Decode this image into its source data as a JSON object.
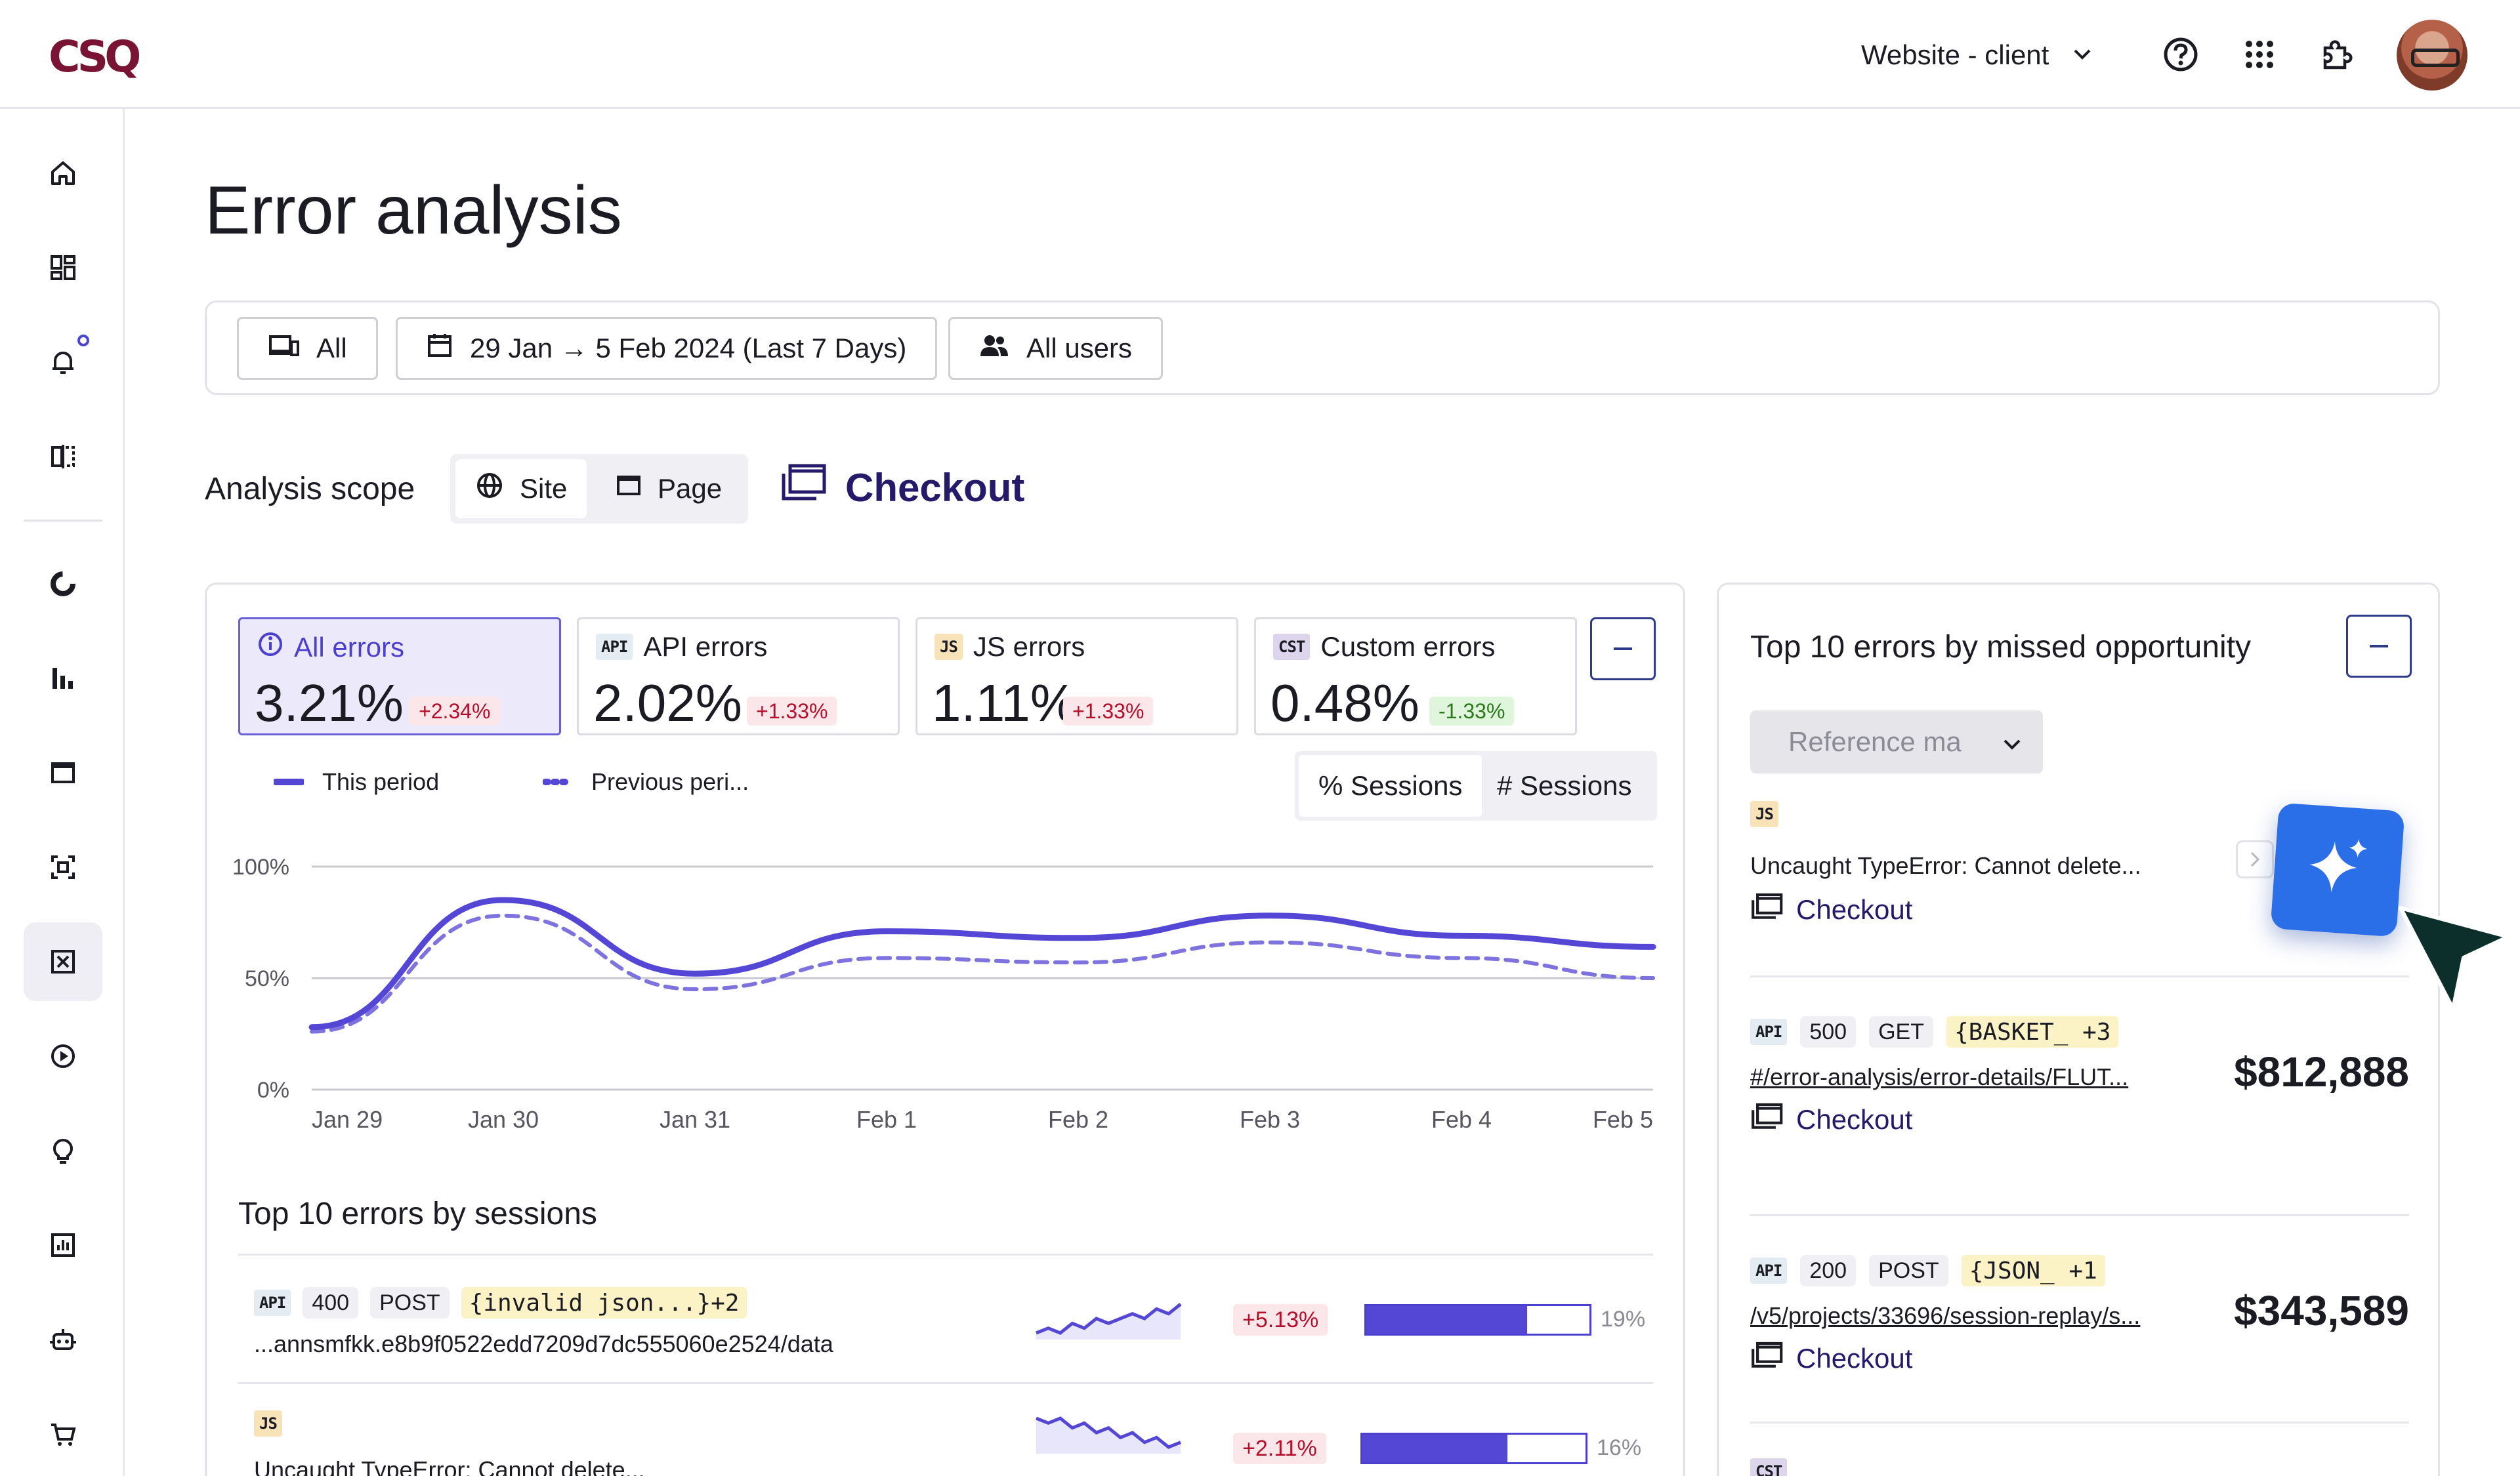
{
  "app": {
    "logo": "CSQ"
  },
  "topbar": {
    "site_selector": "Website - client",
    "icons": [
      "help-icon",
      "apps-grid-icon",
      "puzzle-icon"
    ]
  },
  "sidebar": {
    "icons": [
      "home-icon",
      "dashboard-icon",
      "bell-icon",
      "compare-icon",
      "donut-icon",
      "bar-chart-icon",
      "window-icon",
      "capture-icon",
      "error-analysis-icon",
      "play-icon",
      "lightbulb-icon",
      "report-icon",
      "bot-icon",
      "cart-icon"
    ],
    "active": "error-analysis-icon"
  },
  "page": {
    "title": "Error analysis"
  },
  "filters": {
    "device": "All",
    "date_range": "29 Jan → 5 Feb 2024 (Last 7 Days)",
    "segment": "All users"
  },
  "scope": {
    "label": "Analysis scope",
    "options": [
      "Site",
      "Page"
    ],
    "selected": "Site",
    "page_name": "Checkout"
  },
  "kpis": [
    {
      "badge": "",
      "label": "All errors",
      "value": "3.21%",
      "delta": "+2.34%",
      "trend": "up"
    },
    {
      "badge": "API",
      "label": "API errors",
      "value": "2.02%",
      "delta": "+1.33%",
      "trend": "up"
    },
    {
      "badge": "JS",
      "label": "JS errors",
      "value": "1.11%",
      "delta": "+1.33%",
      "trend": "up"
    },
    {
      "badge": "CST",
      "label": "Custom errors",
      "value": "0.48%",
      "delta": "-1.33%",
      "trend": "down"
    }
  ],
  "legend": {
    "this_period": "This period",
    "previous_period": "Previous peri..."
  },
  "metric_toggle": {
    "options": [
      "% Sessions",
      "# Sessions"
    ],
    "selected": "% Sessions"
  },
  "chart_data": {
    "type": "line",
    "x": [
      "Jan 29",
      "Jan 30",
      "Jan 31",
      "Feb 1",
      "Feb 2",
      "Feb 3",
      "Feb 4",
      "Feb 5"
    ],
    "ylim": [
      0,
      100
    ],
    "ytick_labels": [
      "100%",
      "50%",
      "0%"
    ],
    "grid": true,
    "series": [
      {
        "name": "This period",
        "style": "solid",
        "color": "#5547d6",
        "values": [
          28,
          85,
          52,
          71,
          68,
          78,
          69,
          64
        ]
      },
      {
        "name": "Previous peri...",
        "style": "dashed",
        "color": "#7d72de",
        "values": [
          26,
          78,
          45,
          59,
          57,
          66,
          59,
          50
        ]
      }
    ]
  },
  "sessions_table": {
    "title": "Top 10 errors by sessions",
    "rows": [
      {
        "badge": "API",
        "status": "400",
        "method": "POST",
        "code": "{invalid json...}+2",
        "desc": "...annsmfkk.e8b9f0522edd7209d7dc555060e2524/data",
        "spark": [
          2,
          3,
          2,
          4,
          3,
          5,
          4,
          5,
          6,
          5,
          7,
          6,
          8
        ],
        "delta": "+5.13%",
        "share": 0.72,
        "share_label": "19%"
      },
      {
        "badge": "JS",
        "status": "",
        "method": "",
        "code": "",
        "desc": "Uncaught TypeError: Cannot delete...",
        "spark": [
          8,
          7,
          8,
          6,
          7,
          5,
          6,
          4,
          5,
          3,
          4,
          2,
          3
        ],
        "delta": "+2.11%",
        "share": 0.65,
        "share_label": "16%"
      }
    ]
  },
  "opportunity": {
    "title": "Top 10 errors by missed opportunity",
    "reference_select": "Reference ma",
    "items": [
      {
        "badge": "JS",
        "tags": [],
        "desc": "Uncaught TypeError: Cannot delete...",
        "underline": false,
        "page": "Checkout",
        "value": ""
      },
      {
        "badge": "API",
        "tags": [
          "500",
          "GET"
        ],
        "code": "{BASKET_ +3",
        "desc": "#/error-analysis/error-details/FLUT...",
        "underline": true,
        "page": "Checkout",
        "value": "$812,888"
      },
      {
        "badge": "API",
        "tags": [
          "200",
          "POST"
        ],
        "code": "{JSON_ +1",
        "desc": "/v5/projects/33696/session-replay/s...",
        "underline": true,
        "page": "Checkout",
        "value": "$343,589"
      },
      {
        "badge": "CST",
        "tags": [],
        "desc": "",
        "underline": false,
        "page": "",
        "value": ""
      }
    ]
  },
  "colors": {
    "brand": "#7a1435",
    "accent": "#5547d6",
    "link": "#251a6a",
    "ai_button": "#2a6ee8"
  }
}
